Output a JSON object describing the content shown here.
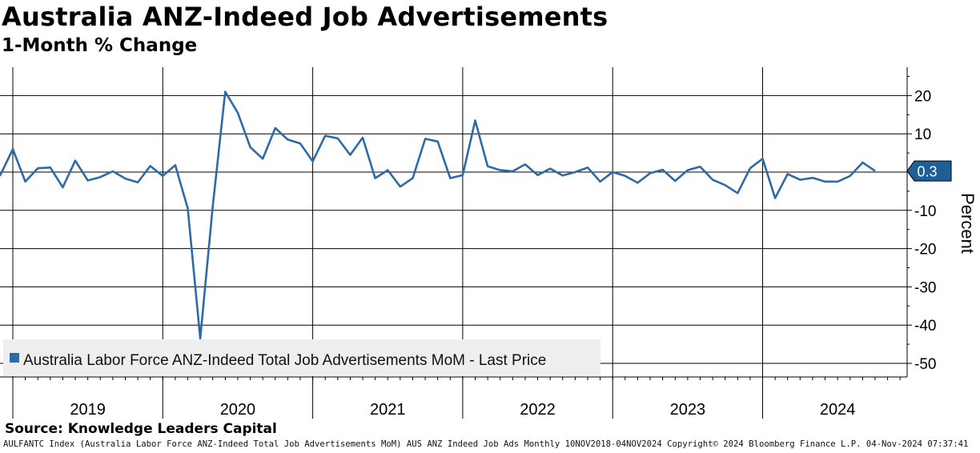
{
  "title": "Australia ANZ-Indeed Job Advertisements",
  "subtitle": "1-Month % Change",
  "source": "Source: Knowledge Leaders Capital",
  "footer": "AULFANTC Index (Australia Labor Force ANZ-Indeed Total Job Advertisements MoM) AUS ANZ Indeed Job Ads  Monthly 10NOV2018-04NOV2024 Copyright© 2024 Bloomberg Finance L.P. 04-Nov-2024 07:37:41",
  "colors": {
    "series": "#2e6aa6",
    "grid": "#000000",
    "legend_bg": "#eeeeee"
  },
  "chart_data": {
    "type": "line",
    "title": "Australia ANZ-Indeed Job Advertisements",
    "subtitle": "1-Month % Change",
    "ylabel": "Percent",
    "ylim": [
      -52,
      28
    ],
    "yticks": [
      20,
      10,
      0,
      -10,
      -20,
      -30,
      -40,
      -50
    ],
    "ytick_labels": [
      "20",
      "10",
      "0",
      "-10",
      "-20",
      "-30",
      "-40",
      "-50"
    ],
    "xlim": [
      2018.83,
      2024.92
    ],
    "year_boundaries": [
      2019,
      2020,
      2021,
      2022,
      2023,
      2024
    ],
    "year_labels": [
      "2019",
      "2020",
      "2021",
      "2022",
      "2023",
      "2024"
    ],
    "legend": "Australia Labor Force ANZ-Indeed Total Job Advertisements MoM - Last Price",
    "last_value_label": "0.3",
    "series": [
      {
        "name": "Australia Labor Force ANZ-Indeed Total Job Advertisements MoM - Last Price",
        "start": "2018-11",
        "frequency": "monthly",
        "values": [
          -2.5,
          -0.8,
          6.0,
          -2.5,
          1.0,
          1.2,
          -4.0,
          3.0,
          -2.2,
          -1.3,
          0.2,
          -1.7,
          -2.7,
          1.6,
          -1.0,
          1.8,
          -9.5,
          -43.5,
          -9.0,
          21.0,
          15.5,
          6.5,
          3.5,
          11.5,
          8.5,
          7.5,
          2.8,
          9.5,
          8.8,
          4.5,
          9.0,
          -1.6,
          0.5,
          -3.8,
          -1.6,
          8.7,
          8.0,
          -1.6,
          -0.8,
          13.5,
          1.5,
          0.5,
          0.2,
          2.0,
          -0.8,
          0.9,
          -0.9,
          0.0,
          1.2,
          -2.5,
          0.0,
          -1.0,
          -2.8,
          -0.3,
          0.6,
          -2.3,
          0.5,
          1.4,
          -2.0,
          -3.4,
          -5.5,
          1.0,
          3.5,
          -6.8,
          -0.5,
          -2.0,
          -1.5,
          -2.5,
          -2.5,
          -1.0,
          2.5,
          0.3
        ]
      }
    ]
  }
}
